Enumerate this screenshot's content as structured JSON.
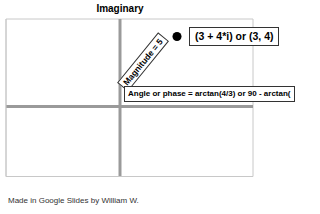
{
  "chart_data": {
    "type": "scatter",
    "ylabel": "Imaginary",
    "x": [
      3
    ],
    "values": [
      4
    ],
    "color": "#000000",
    "marker": "circle",
    "xlim": [
      -6,
      7
    ],
    "xticks": [
      -6,
      -5,
      -4,
      -3,
      -2,
      -1,
      0,
      1,
      2,
      3,
      4,
      5,
      6,
      7
    ],
    "ylim": [
      -4,
      5
    ],
    "yticks": [
      -4,
      -3,
      -2,
      -1,
      0,
      1,
      2,
      3,
      4,
      5
    ],
    "grid": true,
    "tick_labels": false,
    "annotations": [
      "(3 + 4*i) or (3, 4)",
      "Magnitude = 5",
      "Angle or phase = arctan(4/3) or 90 - arctan(",
      "Made in Google Slides by William W."
    ]
  }
}
